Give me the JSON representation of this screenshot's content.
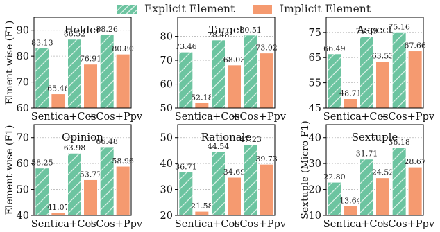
{
  "legend": [
    {
      "name": "Explicit Element",
      "color": "#6cc4a0"
    },
    {
      "name": "Implicit Element",
      "color": "#f59a70"
    }
  ],
  "chart_data": [
    {
      "type": "bar",
      "title": "Holder",
      "ylabel": "Elment-wise (F1)",
      "ylim": [
        60,
        95
      ],
      "yticks": [
        60,
        70,
        80,
        90
      ],
      "categories": [
        "Sentica",
        "+Cos",
        "+Cos+Ppv"
      ],
      "series": [
        {
          "name": "Explicit Element",
          "values": [
            83.13,
            86.52,
            88.26
          ]
        },
        {
          "name": "Implicit Element",
          "values": [
            65.46,
            76.91,
            80.8
          ]
        }
      ],
      "labels": [
        [
          "83.13",
          "86.52",
          "88.26"
        ],
        [
          "65.46",
          "76.91",
          "80.80"
        ]
      ]
    },
    {
      "type": "bar",
      "title": "Target",
      "ylabel": "",
      "ylim": [
        50,
        88
      ],
      "yticks": [
        50,
        60,
        70,
        80
      ],
      "categories": [
        "Sentica",
        "+Cos",
        "+Cos+Ppv"
      ],
      "series": [
        {
          "name": "Explicit Element",
          "values": [
            73.46,
            78.48,
            80.51
          ]
        },
        {
          "name": "Implicit Element",
          "values": [
            52.18,
            68.03,
            73.02
          ]
        }
      ],
      "labels": [
        [
          "73.46",
          "78.48",
          "80.51"
        ],
        [
          "52.18",
          "68.03",
          "73.02"
        ]
      ]
    },
    {
      "type": "bar",
      "title": "Aspect",
      "ylabel": "",
      "ylim": [
        45,
        81
      ],
      "yticks": [
        45,
        55,
        65,
        75
      ],
      "categories": [
        "Sentica",
        "+Cos",
        "+Cos+Ppv"
      ],
      "series": [
        {
          "name": "Explicit Element",
          "values": [
            66.49,
            73.39,
            75.16
          ]
        },
        {
          "name": "Implicit Element",
          "values": [
            48.71,
            63.53,
            67.66
          ]
        }
      ],
      "labels": [
        [
          "66.49",
          "73.39",
          "75.16"
        ],
        [
          "48.71",
          "63.53",
          "67.66"
        ]
      ]
    },
    {
      "type": "bar",
      "title": "Opinion",
      "ylabel": "Element-wise (F1)",
      "ylim": [
        40,
        75
      ],
      "yticks": [
        40,
        50,
        60,
        70
      ],
      "categories": [
        "Sentica",
        "+Cos",
        "+Cos+Ppv"
      ],
      "series": [
        {
          "name": "Explicit Element",
          "values": [
            58.25,
            63.98,
            66.48
          ]
        },
        {
          "name": "Implicit Element",
          "values": [
            41.07,
            53.77,
            58.96
          ]
        }
      ],
      "labels": [
        [
          "58.25",
          "63.98",
          "66.48"
        ],
        [
          "41.07",
          "53.77",
          "58.96"
        ]
      ]
    },
    {
      "type": "bar",
      "title": "Rationale",
      "ylabel": "",
      "ylim": [
        20,
        55
      ],
      "yticks": [
        20,
        30,
        40,
        50
      ],
      "categories": [
        "Sentica",
        "+Cos",
        "+Cos+Ppv"
      ],
      "series": [
        {
          "name": "Explicit Element",
          "values": [
            36.71,
            44.54,
            47.23
          ]
        },
        {
          "name": "Implicit Element",
          "values": [
            21.58,
            34.69,
            39.73
          ]
        }
      ],
      "labels": [
        [
          "36.71",
          "44.54",
          "47.23"
        ],
        [
          "21.58",
          "34.69",
          "39.73"
        ]
      ]
    },
    {
      "type": "bar",
      "title": "Sextuple",
      "ylabel": "Sextuple (Micro F1)",
      "ylim": [
        10,
        45
      ],
      "yticks": [
        10,
        20,
        30,
        40
      ],
      "categories": [
        "Sentica",
        "+Cos",
        "+Cos+Ppv"
      ],
      "series": [
        {
          "name": "Explicit Element",
          "values": [
            22.8,
            31.71,
            36.18
          ]
        },
        {
          "name": "Implicit Element",
          "values": [
            13.64,
            24.52,
            28.67
          ]
        }
      ],
      "labels": [
        [
          "22.80",
          "31.71",
          "36.18"
        ],
        [
          "13.64",
          "24.52",
          "28.67"
        ]
      ]
    }
  ]
}
